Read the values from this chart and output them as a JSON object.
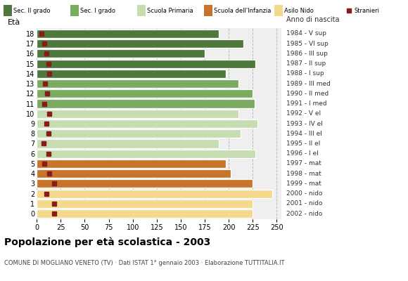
{
  "ages": [
    18,
    17,
    16,
    15,
    14,
    13,
    12,
    11,
    10,
    9,
    8,
    7,
    6,
    5,
    4,
    3,
    2,
    1,
    0
  ],
  "anno_di_nascita": [
    "1984 - V sup",
    "1985 - VI sup",
    "1986 - III sup",
    "1987 - II sup",
    "1988 - I sup",
    "1989 - III med",
    "1990 - II med",
    "1991 - I med",
    "1992 - V el",
    "1993 - IV el",
    "1994 - III el",
    "1995 - II el",
    "1996 - I el",
    "1997 - mat",
    "1998 - mat",
    "1999 - mat",
    "2000 - nido",
    "2001 - nido",
    "2002 - nido"
  ],
  "bar_values": [
    190,
    215,
    175,
    228,
    197,
    210,
    225,
    227,
    210,
    230,
    212,
    190,
    228,
    197,
    202,
    225,
    245,
    225,
    225
  ],
  "stranieri_values": [
    5,
    8,
    10,
    12,
    13,
    9,
    11,
    8,
    13,
    10,
    12,
    7,
    12,
    8,
    13,
    18,
    10,
    18,
    18
  ],
  "age_colors": {
    "18": "#4d7a3c",
    "17": "#4d7a3c",
    "16": "#4d7a3c",
    "15": "#4d7a3c",
    "14": "#4d7a3c",
    "13": "#7aab5e",
    "12": "#7aab5e",
    "11": "#7aab5e",
    "10": "#c5ddb0",
    "9": "#c5ddb0",
    "8": "#c5ddb0",
    "7": "#c5ddb0",
    "6": "#c5ddb0",
    "5": "#c8742a",
    "4": "#c8742a",
    "3": "#c8742a",
    "2": "#f5d98b",
    "1": "#f5d98b",
    "0": "#f5d98b"
  },
  "legend_labels": [
    "Sec. II grado",
    "Sec. I grado",
    "Scuola Primaria",
    "Scuola dell'Infanzia",
    "Asilo Nido",
    "Stranieri"
  ],
  "legend_colors": [
    "#4d7a3c",
    "#7aab5e",
    "#c5ddb0",
    "#c8742a",
    "#f5d98b",
    "#8b1a1a"
  ],
  "stranieri_color": "#8b1a1a",
  "title": "Popolazione per età scolastica - 2003",
  "subtitle": "COMUNE DI MOGLIANO VENETO (TV) · Dati ISTAT 1° gennaio 2003 · Elaborazione TUTTITALIA.IT",
  "eta_label": "Età",
  "anno_label": "Anno di nascita",
  "xlim": [
    0,
    255
  ],
  "xticks": [
    0,
    25,
    50,
    75,
    100,
    125,
    150,
    175,
    200,
    225,
    250
  ],
  "bg_color": "#efefef",
  "grid_color": "#bbbbbb"
}
